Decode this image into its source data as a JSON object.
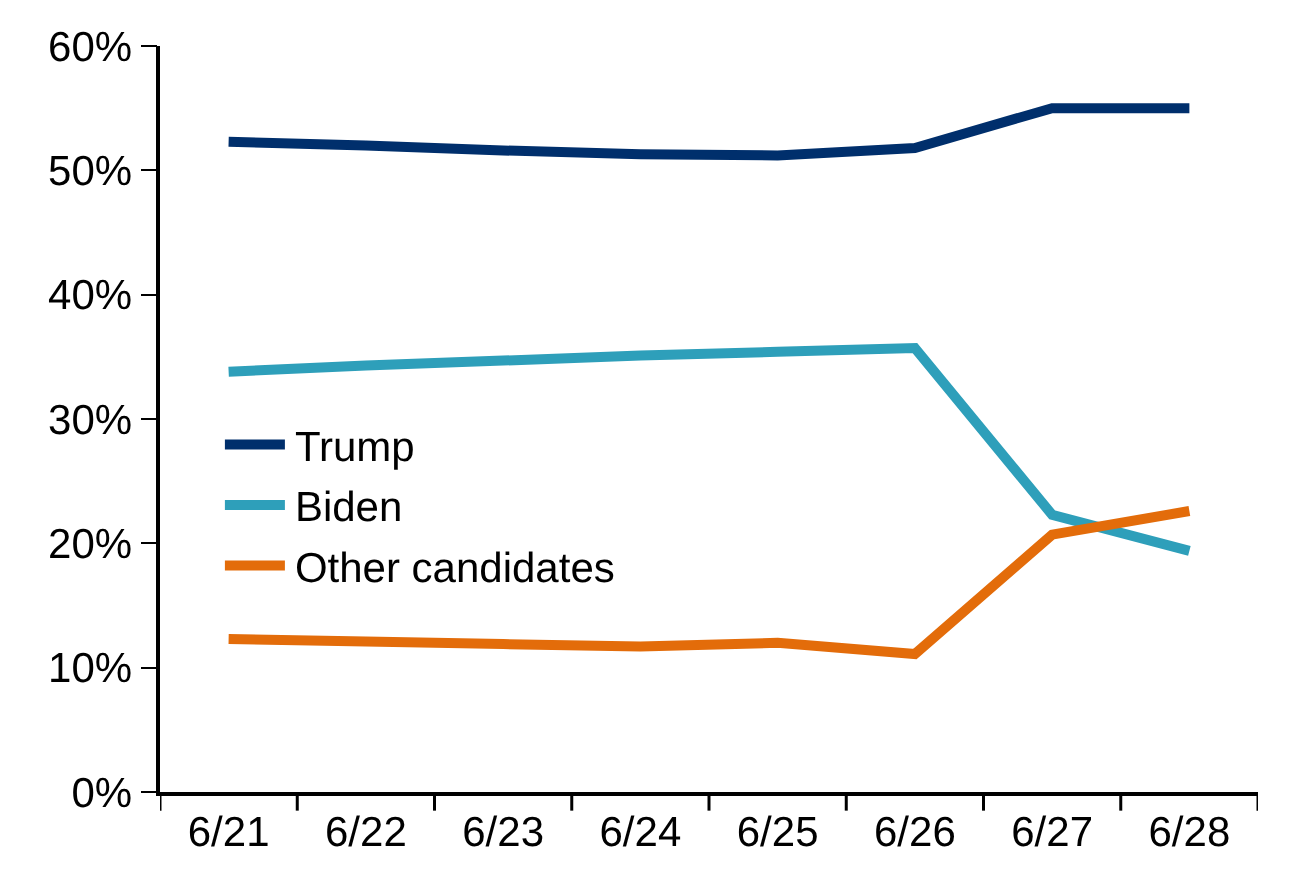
{
  "chart_data": {
    "type": "line",
    "categories": [
      "6/21",
      "6/22",
      "6/23",
      "6/24",
      "6/25",
      "6/26",
      "6/27",
      "6/28"
    ],
    "series": [
      {
        "name": "Trump",
        "color": "#002f6c",
        "values": [
          52.3,
          52.0,
          51.6,
          51.3,
          51.2,
          51.8,
          55.0,
          55.0
        ]
      },
      {
        "name": "Biden",
        "color": "#2e9fba",
        "values": [
          33.8,
          34.3,
          34.7,
          35.1,
          35.4,
          35.7,
          22.3,
          19.4
        ]
      },
      {
        "name": "Other candidates",
        "color": "#e36c0a",
        "values": [
          12.3,
          12.1,
          11.9,
          11.7,
          12.0,
          11.1,
          20.7,
          22.6
        ]
      }
    ],
    "ylim": [
      0,
      60
    ],
    "yticks": [
      {
        "value": 0,
        "label": "0%"
      },
      {
        "value": 10,
        "label": "10%"
      },
      {
        "value": 20,
        "label": "20%"
      },
      {
        "value": 30,
        "label": "30%"
      },
      {
        "value": 40,
        "label": "40%"
      },
      {
        "value": 50,
        "label": "50%"
      },
      {
        "value": 60,
        "label": "60%"
      }
    ],
    "legend": "left",
    "marker": "none",
    "line_style": "solid"
  }
}
